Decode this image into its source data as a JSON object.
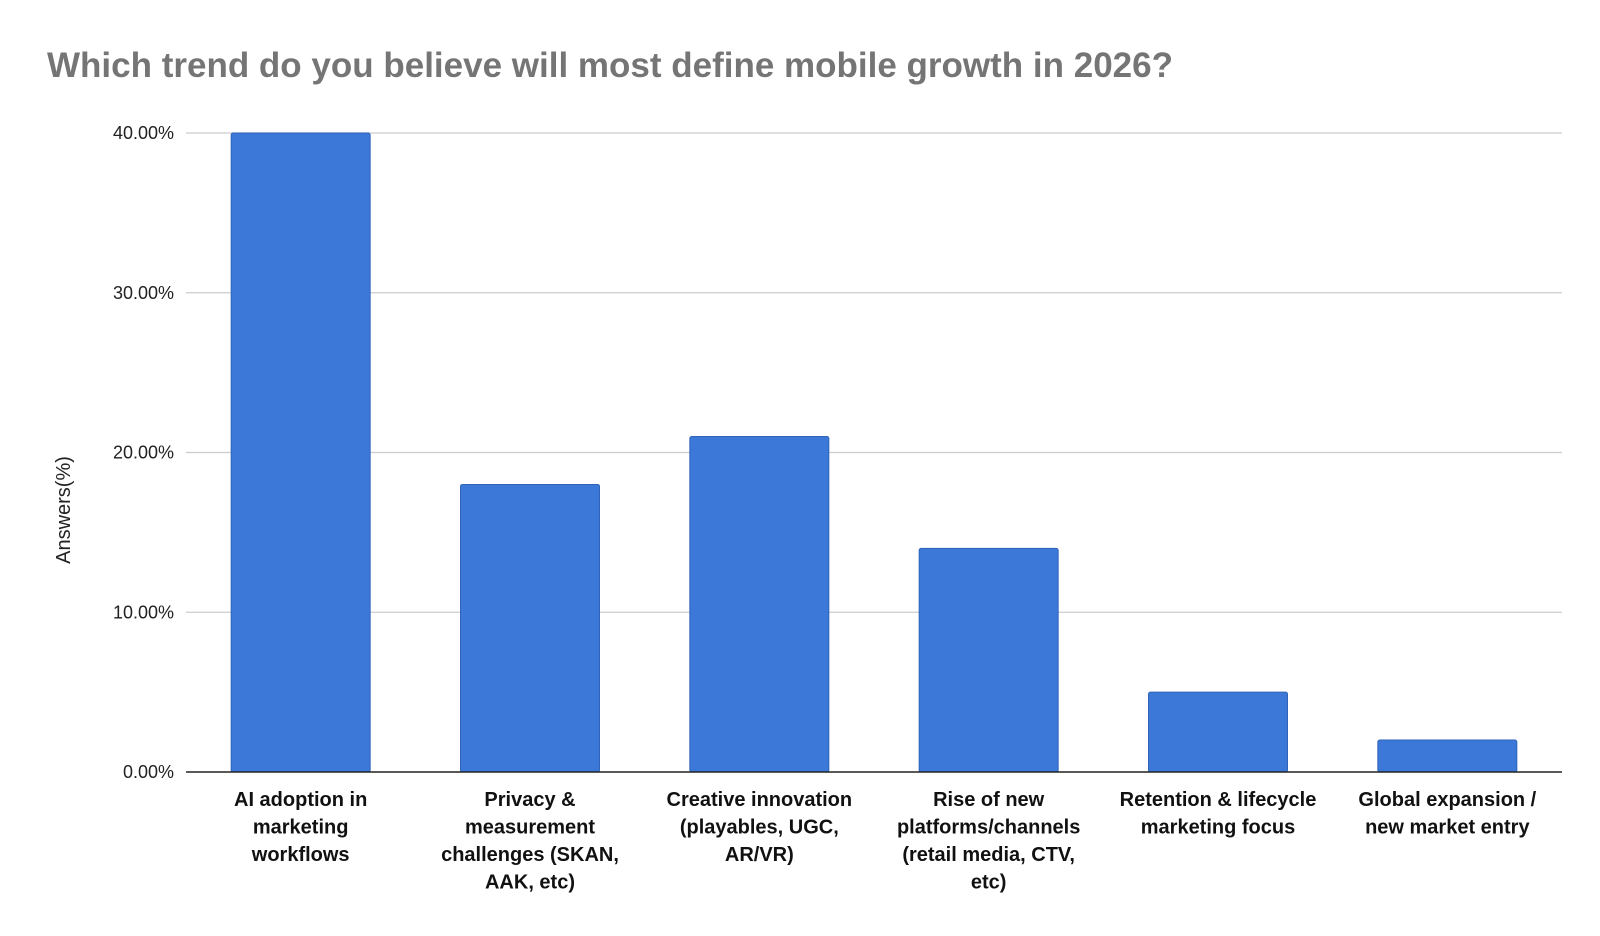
{
  "chart_data": {
    "type": "bar",
    "title": "Which trend do you believe will most define mobile growth in 2026?",
    "xlabel": "",
    "ylabel": "Answers(%)",
    "ylim": [
      0,
      40
    ],
    "yticks": [
      "0.00%",
      "10.00%",
      "20.00%",
      "30.00%",
      "40.00%"
    ],
    "ytick_values": [
      0,
      10,
      20,
      30,
      40
    ],
    "grid": true,
    "legend": "none",
    "bar_color": "#3c78d8",
    "categories": [
      "AI adoption in marketing workflows",
      "Privacy & measurement challenges (SKAN, AAK, etc)",
      "Creative innovation (playables, UGC, AR/VR)",
      "Rise of new platforms/channels (retail media, CTV, etc)",
      "Retention & lifecycle marketing focus",
      "Global expansion / new market entry"
    ],
    "category_lines": [
      [
        "AI adoption in",
        "marketing",
        "workflows"
      ],
      [
        "Privacy &",
        "measurement",
        "challenges (SKAN,",
        "AAK, etc)"
      ],
      [
        "Creative innovation",
        "(playables, UGC,",
        "AR/VR)"
      ],
      [
        "Rise of new",
        "platforms/channels",
        "(retail media, CTV,",
        "etc)"
      ],
      [
        "Retention & lifecycle",
        "marketing focus"
      ],
      [
        "Global expansion /",
        "new market entry"
      ]
    ],
    "values": [
      40,
      18,
      21,
      14,
      5,
      2
    ]
  }
}
